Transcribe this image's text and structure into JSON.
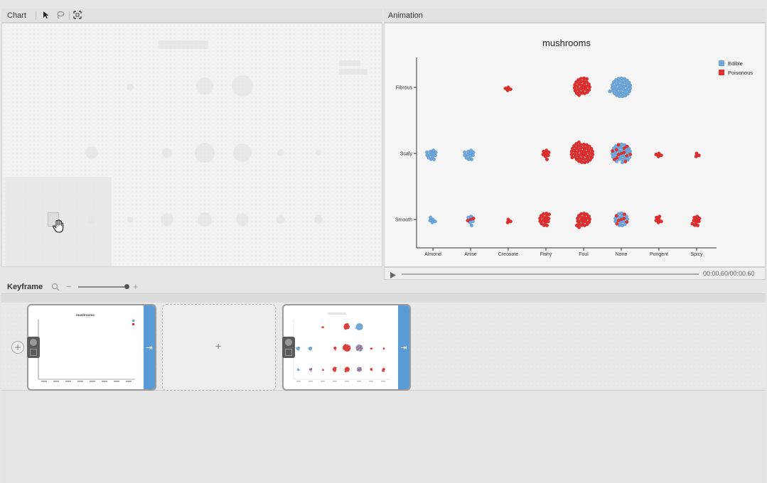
{
  "chart_panel": {
    "title": "Chart",
    "tools": [
      "select-arrow-icon",
      "lasso-icon",
      "fit-icon"
    ]
  },
  "animation_panel": {
    "title": "Animation",
    "time": "00:00.60/00:00.60"
  },
  "keyframe_panel": {
    "title": "Keyframe",
    "zoom": {
      "minus": "−",
      "plus": "+"
    },
    "add_label": "+"
  },
  "colors": {
    "edible": "#6fa8dc",
    "poisonous": "#e03030",
    "accent": "#5b9bd5"
  },
  "chart_data": {
    "type": "scatter",
    "title": "mushrooms",
    "categories_x": [
      "Almond",
      "Anise",
      "Creosote",
      "Fishy",
      "Foul",
      "None",
      "Pungent",
      "Spicy"
    ],
    "categories_y": [
      "Fibrous",
      "Scaly",
      "Smooth"
    ],
    "legend": {
      "position": "top-right",
      "entries": [
        "Edible",
        "Poisonous"
      ]
    },
    "clusters": [
      {
        "x": "Creosote",
        "y": "Fibrous",
        "edible": 0,
        "poisonous": 4
      },
      {
        "x": "Foul",
        "y": "Fibrous",
        "edible": 0,
        "poisonous": 30
      },
      {
        "x": "None",
        "y": "Fibrous",
        "edible": 40,
        "poisonous": 0
      },
      {
        "x": "Almond",
        "y": "Scaly",
        "edible": 12,
        "poisonous": 0
      },
      {
        "x": "Anise",
        "y": "Scaly",
        "edible": 12,
        "poisonous": 0
      },
      {
        "x": "Fishy",
        "y": "Scaly",
        "edible": 0,
        "poisonous": 8
      },
      {
        "x": "Foul",
        "y": "Scaly",
        "edible": 6,
        "poisonous": 40
      },
      {
        "x": "None",
        "y": "Scaly",
        "edible": 26,
        "poisonous": 12
      },
      {
        "x": "Pungent",
        "y": "Scaly",
        "edible": 0,
        "poisonous": 4
      },
      {
        "x": "Spicy",
        "y": "Scaly",
        "edible": 0,
        "poisonous": 3
      },
      {
        "x": "Almond",
        "y": "Smooth",
        "edible": 5,
        "poisonous": 0
      },
      {
        "x": "Anise",
        "y": "Smooth",
        "edible": 5,
        "poisonous": 3
      },
      {
        "x": "Creosote",
        "y": "Smooth",
        "edible": 0,
        "poisonous": 3
      },
      {
        "x": "Fishy",
        "y": "Smooth",
        "edible": 0,
        "poisonous": 16
      },
      {
        "x": "Foul",
        "y": "Smooth",
        "edible": 0,
        "poisonous": 22
      },
      {
        "x": "None",
        "y": "Smooth",
        "edible": 14,
        "poisonous": 6
      },
      {
        "x": "Pungent",
        "y": "Smooth",
        "edible": 0,
        "poisonous": 6
      },
      {
        "x": "Spicy",
        "y": "Smooth",
        "edible": 0,
        "poisonous": 10
      }
    ]
  },
  "thumbnail": {
    "title": "mushrooms"
  }
}
